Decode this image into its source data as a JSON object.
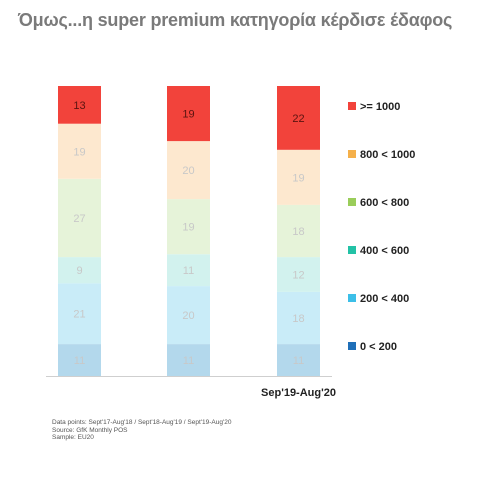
{
  "title": "Όμως...η super premium κατηγορία κέρδισε έδαφος",
  "chart_data": {
    "type": "bar",
    "stacked": true,
    "categories": [
      "",
      "",
      "Sep'19-Aug'20"
    ],
    "series": [
      {
        "name": "0 < 200",
        "color": "#1f78c8",
        "values": [
          0,
          0,
          0
        ]
      },
      {
        "name": "200 < 400",
        "color": "#b3d8ec",
        "values": [
          11,
          11,
          11
        ]
      },
      {
        "name": "200 < 400",
        "color": "#c9ecf8",
        "values": [
          21,
          20,
          18
        ]
      },
      {
        "name": "400 < 600",
        "color": "#d2f2ee",
        "values": [
          9,
          11,
          12
        ]
      },
      {
        "name": "600 < 800",
        "color": "#e6f3d9",
        "values": [
          27,
          19,
          18
        ]
      },
      {
        "name": "800 < 1000",
        "color": "#fde8cf",
        "values": [
          19,
          20,
          19
        ]
      },
      {
        "name": ">= 1000",
        "color": "#f2433b",
        "values": [
          13,
          19,
          22
        ]
      }
    ],
    "legend": [
      {
        "label": ">= 1000",
        "color": "#f2433b"
      },
      {
        "label": "800 < 1000",
        "color": "#f5b04a"
      },
      {
        "label": "600 < 800",
        "color": "#9acd5a"
      },
      {
        "label": "400 < 600",
        "color": "#22c2a6"
      },
      {
        "label": "200 < 400",
        "color": "#3cbfe8"
      },
      {
        "label": "0 < 200",
        "color": "#1f6fb8"
      }
    ],
    "legend_position": "right",
    "ylim": [
      0,
      100
    ],
    "grid": false
  },
  "footnotes": [
    "Data points: Sept'17-Aug'18 / Sept'18-Aug'19 / Sept'19-Aug'20",
    "Source: GfK Monthly POS",
    "Sample: EU20"
  ]
}
